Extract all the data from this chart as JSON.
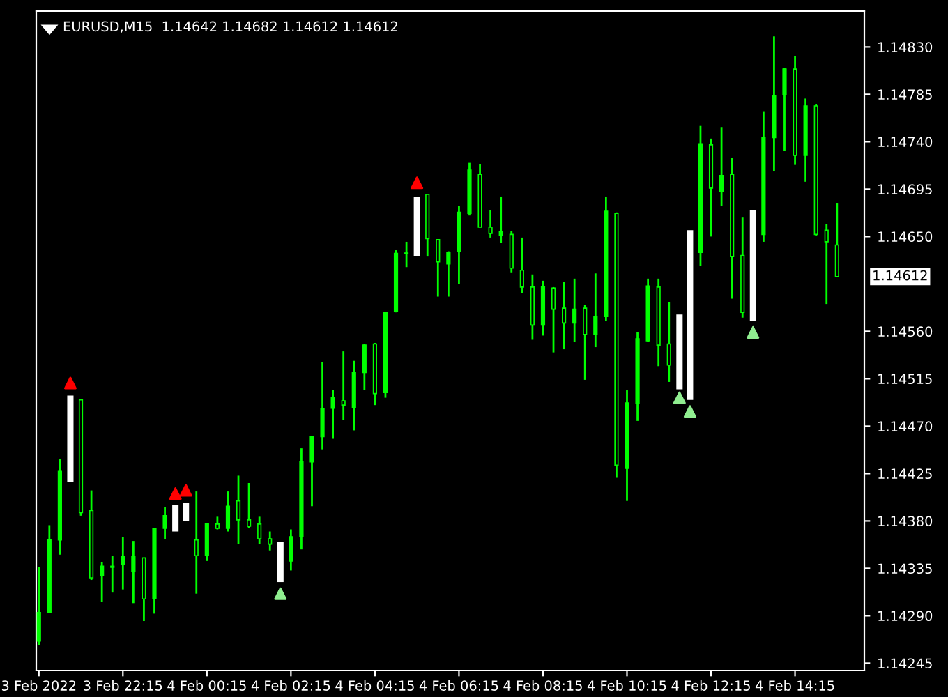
{
  "chart_data": {
    "type": "candlestick",
    "title": "EURUSD,M15  1.14642 1.14682 1.14612 1.14612",
    "color": "#00ff00",
    "categories": [
      "3 Feb 2022",
      null,
      null,
      null,
      null,
      null,
      null,
      null,
      "3 Feb 22:15",
      null,
      null,
      null,
      null,
      null,
      null,
      null,
      "4 Feb 00:15",
      null,
      null,
      null,
      null,
      null,
      null,
      null,
      "4 Feb 02:15",
      null,
      null,
      null,
      null,
      null,
      null,
      null,
      "4 Feb 04:15",
      null,
      null,
      null,
      null,
      null,
      null,
      null,
      "4 Feb 06:15",
      null,
      null,
      null,
      null,
      null,
      null,
      null,
      "4 Feb 08:15",
      null,
      null,
      null,
      null,
      null,
      null,
      null,
      "4 Feb 10:15",
      null,
      null,
      null,
      null,
      null,
      null,
      null,
      "4 Feb 12:15",
      null,
      null,
      null,
      null,
      null,
      null,
      null,
      "4 Feb 14:15",
      null,
      null,
      null,
      null
    ],
    "ohlc": [
      [
        1.14266,
        1.14336,
        1.14262,
        1.14293
      ],
      [
        1.14293,
        1.14376,
        1.14293,
        1.14362
      ],
      [
        1.14362,
        1.14439,
        1.14348,
        1.14427
      ],
      null,
      [
        1.14495,
        1.14495,
        1.14385,
        1.14388
      ],
      [
        1.1439,
        1.14409,
        1.14324,
        1.14326
      ],
      [
        1.14328,
        1.14341,
        1.14303,
        1.14337
      ],
      [
        1.14336,
        1.14347,
        1.14312,
        1.14337
      ],
      [
        1.14339,
        1.14365,
        1.14315,
        1.14346
      ],
      [
        1.14332,
        1.14361,
        1.14302,
        1.14346
      ],
      [
        1.14345,
        1.14345,
        1.14285,
        1.14306
      ],
      [
        1.14306,
        1.14373,
        1.14292,
        1.14373
      ],
      [
        1.14373,
        1.14393,
        1.14363,
        1.14385
      ],
      null,
      null,
      [
        1.14362,
        1.14408,
        1.14311,
        1.14347
      ],
      [
        1.14347,
        1.14377,
        1.14342,
        1.14377
      ],
      [
        1.14377,
        1.14384,
        1.14372,
        1.14373
      ],
      [
        1.14373,
        1.14408,
        1.1437,
        1.14394
      ],
      [
        1.14399,
        1.14423,
        1.14358,
        1.14381
      ],
      [
        1.14381,
        1.14416,
        1.14373,
        1.14375
      ],
      [
        1.14377,
        1.14384,
        1.14358,
        1.14363
      ],
      [
        1.14363,
        1.1437,
        1.14352,
        1.14358
      ],
      null,
      [
        1.14342,
        1.14372,
        1.14333,
        1.14365
      ],
      [
        1.14365,
        1.14449,
        1.14353,
        1.14436
      ],
      [
        1.14436,
        1.14461,
        1.14394,
        1.1446
      ],
      [
        1.1446,
        1.14531,
        1.14448,
        1.14487
      ],
      [
        1.14487,
        1.14504,
        1.14458,
        1.14497
      ],
      [
        1.14494,
        1.14541,
        1.14476,
        1.1449
      ],
      [
        1.14488,
        1.14532,
        1.14466,
        1.14521
      ],
      [
        1.14521,
        1.14548,
        1.14504,
        1.14547
      ],
      [
        1.14548,
        1.14549,
        1.1449,
        1.14501
      ],
      [
        1.14502,
        1.14578,
        1.14497,
        1.14578
      ],
      [
        1.14579,
        1.14637,
        1.14578,
        1.14634
      ],
      [
        1.14634,
        1.14645,
        1.14621,
        1.14634
      ],
      null,
      [
        1.1469,
        1.1469,
        1.14631,
        1.14648
      ],
      [
        1.14647,
        1.14647,
        1.14593,
        1.14626
      ],
      [
        1.14624,
        1.14636,
        1.14593,
        1.14635
      ],
      [
        1.14636,
        1.14679,
        1.14605,
        1.14673
      ],
      [
        1.14672,
        1.1472,
        1.1467,
        1.14713
      ],
      [
        1.14709,
        1.14719,
        1.14659,
        1.14659
      ],
      [
        1.14659,
        1.14675,
        1.14649,
        1.14653
      ],
      [
        1.14651,
        1.14688,
        1.14644,
        1.14655
      ],
      [
        1.14652,
        1.14655,
        1.14616,
        1.1462
      ],
      [
        1.14618,
        1.14649,
        1.14596,
        1.14602
      ],
      [
        1.14602,
        1.14614,
        1.14552,
        1.14566
      ],
      [
        1.14566,
        1.14608,
        1.14556,
        1.14602
      ],
      [
        1.14601,
        1.14602,
        1.1454,
        1.14581
      ],
      [
        1.14582,
        1.14607,
        1.14543,
        1.14568
      ],
      [
        1.14568,
        1.1461,
        1.1455,
        1.14581
      ],
      [
        1.14582,
        1.14585,
        1.14514,
        1.14557
      ],
      [
        1.14557,
        1.14615,
        1.14545,
        1.14574
      ],
      [
        1.14574,
        1.14688,
        1.1457,
        1.14674
      ],
      [
        1.14672,
        1.14673,
        1.14421,
        1.14433
      ],
      [
        1.1443,
        1.14504,
        1.14399,
        1.14492
      ],
      [
        1.14492,
        1.14559,
        1.14475,
        1.14553
      ],
      [
        1.14551,
        1.1461,
        1.1455,
        1.14603
      ],
      [
        1.14602,
        1.1461,
        1.14527,
        1.14547
      ],
      [
        1.14548,
        1.14588,
        1.14512,
        1.14528
      ],
      null,
      null,
      [
        1.14635,
        1.14755,
        1.14622,
        1.14738
      ],
      [
        1.14737,
        1.14743,
        1.1465,
        1.14696
      ],
      [
        1.14693,
        1.14754,
        1.14679,
        1.14708
      ],
      [
        1.14709,
        1.14725,
        1.14591,
        1.14631
      ],
      [
        1.14632,
        1.14668,
        1.14573,
        1.14578
      ],
      null,
      [
        1.14652,
        1.14769,
        1.14645,
        1.14744
      ],
      [
        1.14744,
        1.1484,
        1.14712,
        1.14784
      ],
      [
        1.14785,
        1.1481,
        1.14731,
        1.14809
      ],
      [
        1.14809,
        1.14821,
        1.14718,
        1.14727
      ],
      [
        1.14727,
        1.14781,
        1.14702,
        1.14774
      ],
      [
        1.14774,
        1.14776,
        1.14651,
        1.14652
      ],
      [
        1.14656,
        1.14662,
        1.14586,
        1.14645
      ],
      [
        1.14642,
        1.14682,
        1.14612,
        1.14612
      ]
    ],
    "series": [
      {
        "type": "bar",
        "color": "#ffffff",
        "base": [
          null,
          null,
          null,
          1.14417,
          null,
          null,
          null,
          null,
          null,
          null,
          null,
          null,
          null,
          1.1437,
          1.1438,
          null,
          null,
          null,
          null,
          null,
          null,
          null,
          null,
          1.14322,
          null,
          null,
          null,
          null,
          null,
          null,
          null,
          null,
          null,
          null,
          null,
          null,
          1.14631,
          null,
          null,
          null,
          null,
          null,
          null,
          null,
          null,
          null,
          null,
          null,
          null,
          null,
          null,
          null,
          null,
          null,
          null,
          null,
          null,
          null,
          null,
          null,
          null,
          1.14505,
          1.14495,
          null,
          null,
          null,
          null,
          null,
          1.1457,
          null,
          null,
          null,
          null,
          null,
          null,
          null,
          null
        ],
        "values": [
          null,
          null,
          null,
          0.00082,
          null,
          null,
          null,
          null,
          null,
          null,
          null,
          null,
          null,
          0.00025,
          0.00017,
          null,
          null,
          null,
          null,
          null,
          null,
          null,
          null,
          0.00038,
          null,
          null,
          null,
          null,
          null,
          null,
          null,
          null,
          null,
          null,
          null,
          null,
          0.00057,
          null,
          null,
          null,
          null,
          null,
          null,
          null,
          null,
          null,
          null,
          null,
          null,
          null,
          null,
          null,
          null,
          null,
          null,
          null,
          null,
          null,
          null,
          null,
          null,
          0.00071,
          0.00161,
          null,
          null,
          null,
          null,
          null,
          0.00105,
          null,
          null,
          null,
          null,
          null,
          null,
          null,
          null
        ]
      },
      {
        "type": "scatter",
        "color": "#ff0000",
        "marker": "triangle",
        "values": [
          null,
          null,
          null,
          1.14511,
          null,
          null,
          null,
          null,
          null,
          null,
          null,
          null,
          null,
          1.14406,
          1.14409,
          null,
          null,
          null,
          null,
          null,
          null,
          null,
          null,
          null,
          null,
          null,
          null,
          null,
          null,
          null,
          null,
          null,
          null,
          null,
          null,
          null,
          1.14701,
          null,
          null,
          null,
          null,
          null,
          null,
          null,
          null,
          null,
          null,
          null,
          null,
          null,
          null,
          null,
          null,
          null,
          null,
          null,
          null,
          null,
          null,
          null,
          null,
          null,
          null,
          null,
          null,
          null,
          null,
          null,
          null,
          null,
          null,
          null,
          null,
          null,
          null,
          null,
          null
        ]
      },
      {
        "type": "scatter",
        "color": "#90ee90",
        "marker": "triangle",
        "values": [
          null,
          null,
          null,
          null,
          null,
          null,
          null,
          null,
          null,
          null,
          null,
          null,
          null,
          null,
          null,
          null,
          null,
          null,
          null,
          null,
          null,
          null,
          null,
          1.14311,
          null,
          null,
          null,
          null,
          null,
          null,
          null,
          null,
          null,
          null,
          null,
          null,
          null,
          null,
          null,
          null,
          null,
          null,
          null,
          null,
          null,
          null,
          null,
          null,
          null,
          null,
          null,
          null,
          null,
          null,
          null,
          null,
          null,
          null,
          null,
          null,
          null,
          1.14497,
          1.14484,
          null,
          null,
          null,
          null,
          null,
          1.14559,
          null,
          null,
          null,
          null,
          null,
          null,
          null,
          null
        ]
      }
    ],
    "ylim": [
      1.14238,
      1.14864
    ],
    "yticks": [
      1.14245,
      {
        "value": 1.1429,
        "label": "1.14290"
      },
      1.14335,
      {
        "value": 1.1438,
        "label": "1.14380"
      },
      1.14425,
      {
        "value": 1.1447,
        "label": "1.14470"
      },
      1.14515,
      {
        "value": 1.1456,
        "label": "1.14560"
      },
      {
        "value": 1.1465,
        "label": "1.14650"
      },
      1.14695,
      {
        "value": 1.1474,
        "label": "1.14740"
      },
      1.14785,
      {
        "value": 1.1483,
        "label": "1.14830"
      }
    ],
    "annotations": [
      "1.14612"
    ],
    "grid": false,
    "legend": false
  }
}
